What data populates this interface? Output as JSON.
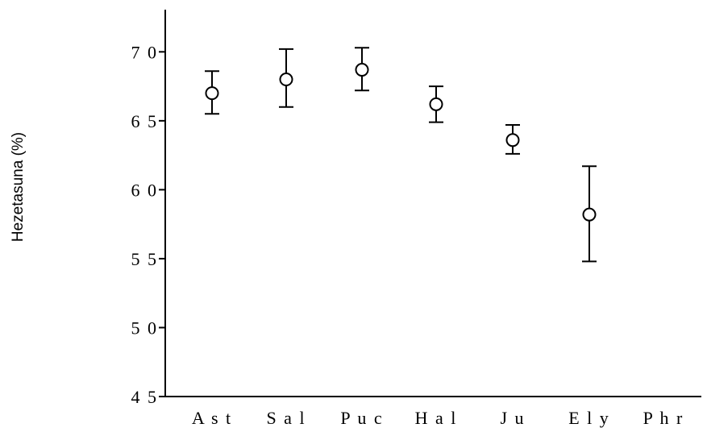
{
  "chart_data": {
    "type": "scatter",
    "ylabel": "Hezetasuna (%)",
    "xlabel": "",
    "title": "",
    "ylim": [
      45,
      73
    ],
    "yticks": [
      45,
      50,
      55,
      60,
      65,
      70
    ],
    "ytick_labels": [
      "4 5",
      "5 0",
      "5 5",
      "6 0",
      "6 5",
      "7 0"
    ],
    "categories": [
      "Ast",
      "Sal",
      "Puc",
      "Hal",
      "Ju",
      "Ely",
      "Phr"
    ],
    "category_labels": [
      "A s t",
      "S a l",
      "P u c",
      "H a l",
      "J u",
      "E l y",
      "P h r"
    ],
    "points": [
      {
        "category": "Ast",
        "mean": 67.0,
        "low": 65.5,
        "high": 68.6
      },
      {
        "category": "Sal",
        "mean": 68.0,
        "low": 66.0,
        "high": 70.2
      },
      {
        "category": "Puc",
        "mean": 68.7,
        "low": 67.2,
        "high": 70.3
      },
      {
        "category": "Hal",
        "mean": 66.2,
        "low": 64.9,
        "high": 67.5
      },
      {
        "category": "Ju",
        "mean": 63.6,
        "low": 62.6,
        "high": 64.7
      },
      {
        "category": "Ely",
        "mean": 58.2,
        "low": 54.8,
        "high": 61.7
      }
    ],
    "grid": false,
    "marker": "open-circle",
    "error_bars": true
  }
}
